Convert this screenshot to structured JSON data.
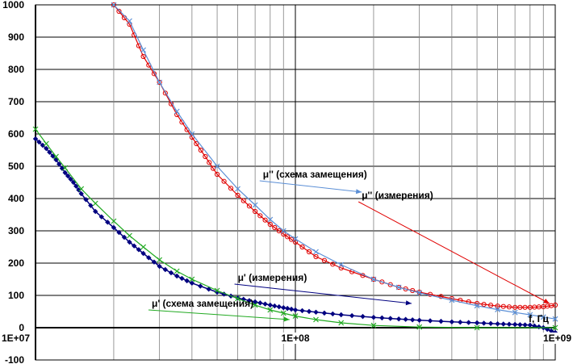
{
  "chart_data": {
    "type": "line",
    "xscale": "log",
    "xlim": [
      10000000,
      1000000000
    ],
    "ylim": [
      -100,
      1000
    ],
    "grid": true,
    "xticks": [
      "1E+07",
      "1E+08",
      "1E+09"
    ],
    "yticks": [
      "-100",
      "0",
      "100",
      "200",
      "300",
      "400",
      "500",
      "600",
      "700",
      "800",
      "900",
      "1000"
    ],
    "axis_unit_label": "f, Гц",
    "colors": {
      "mu2_measured": "#e00000",
      "mu2_model": "#5b8fd6",
      "mu1_measured": "#000080",
      "mu1_model": "#22aa22",
      "grid": "#000000"
    },
    "series": [
      {
        "key": "mu2_measured",
        "marker": "circle-open",
        "x": [
          20000000,
          23000000,
          26000000,
          30000000,
          35000000,
          40000000,
          45000000,
          50000000,
          60000000,
          70000000,
          80000000,
          90000000,
          100000000,
          120000000,
          150000000,
          200000000,
          250000000,
          300000000,
          400000000,
          500000000,
          600000000,
          700000000,
          800000000,
          900000000,
          1000000000
        ],
        "y": [
          1000,
          940,
          840,
          760,
          660,
          590,
          530,
          475,
          410,
          360,
          320,
          290,
          265,
          220,
          185,
          150,
          125,
          110,
          90,
          75,
          67,
          63,
          63,
          65,
          70
        ]
      },
      {
        "key": "mu2_model",
        "marker": "x",
        "x": [
          20000000,
          23000000,
          26000000,
          30000000,
          35000000,
          40000000,
          50000000,
          60000000,
          70000000,
          80000000,
          90000000,
          100000000,
          120000000,
          150000000,
          200000000,
          250000000,
          300000000,
          400000000,
          500000000,
          600000000,
          700000000,
          800000000,
          900000000,
          1000000000
        ],
        "y": [
          1000,
          950,
          860,
          760,
          670,
          600,
          500,
          430,
          380,
          335,
          300,
          275,
          235,
          195,
          150,
          125,
          108,
          85,
          68,
          56,
          47,
          40,
          33,
          27
        ]
      },
      {
        "key": "mu1_measured",
        "marker": "diamond-filled",
        "x": [
          10000000,
          11000000,
          12000000,
          13000000,
          14000000,
          15000000,
          17000000,
          20000000,
          23000000,
          26000000,
          30000000,
          35000000,
          40000000,
          50000000,
          60000000,
          70000000,
          80000000,
          90000000,
          100000000,
          120000000,
          150000000,
          200000000,
          250000000,
          300000000,
          400000000,
          500000000,
          600000000,
          700000000,
          800000000,
          900000000,
          1000000000
        ],
        "y": [
          585,
          555,
          520,
          480,
          450,
          415,
          360,
          310,
          265,
          230,
          190,
          160,
          138,
          110,
          92,
          80,
          70,
          62,
          55,
          48,
          40,
          32,
          27,
          23,
          18,
          15,
          12,
          10,
          8,
          0,
          -15
        ]
      },
      {
        "key": "mu1_model",
        "marker": "x",
        "x": [
          10000000,
          11000000,
          12000000,
          13000000,
          15000000,
          17000000,
          20000000,
          23000000,
          26000000,
          30000000,
          35000000,
          40000000,
          50000000,
          60000000,
          70000000,
          80000000,
          90000000,
          100000000,
          120000000,
          150000000,
          200000000,
          300000000,
          500000000,
          1000000000
        ],
        "y": [
          615,
          570,
          530,
          495,
          430,
          385,
          330,
          285,
          250,
          210,
          175,
          150,
          115,
          90,
          70,
          55,
          45,
          36,
          25,
          15,
          7,
          2,
          0,
          0
        ]
      }
    ],
    "annotations": [
      {
        "key": "mu2_model",
        "text": "μ'' (схема замещения)",
        "at": [
          75000000,
          465
        ],
        "arrow_to": [
          180000000,
          420
        ]
      },
      {
        "key": "mu2_measured",
        "text": "μ'' (измерения)",
        "at": [
          180000000,
          400
        ],
        "arrow_to": [
          950000000,
          75
        ]
      },
      {
        "key": "mu1_measured",
        "text": "μ' (измерения)",
        "at": [
          60000000,
          145
        ],
        "arrow_to": [
          280000000,
          75
        ]
      },
      {
        "key": "mu1_model",
        "text": "μ' (схема замещения)",
        "at": [
          28000000,
          65
        ],
        "arrow_to": [
          95000000,
          25
        ]
      }
    ]
  }
}
